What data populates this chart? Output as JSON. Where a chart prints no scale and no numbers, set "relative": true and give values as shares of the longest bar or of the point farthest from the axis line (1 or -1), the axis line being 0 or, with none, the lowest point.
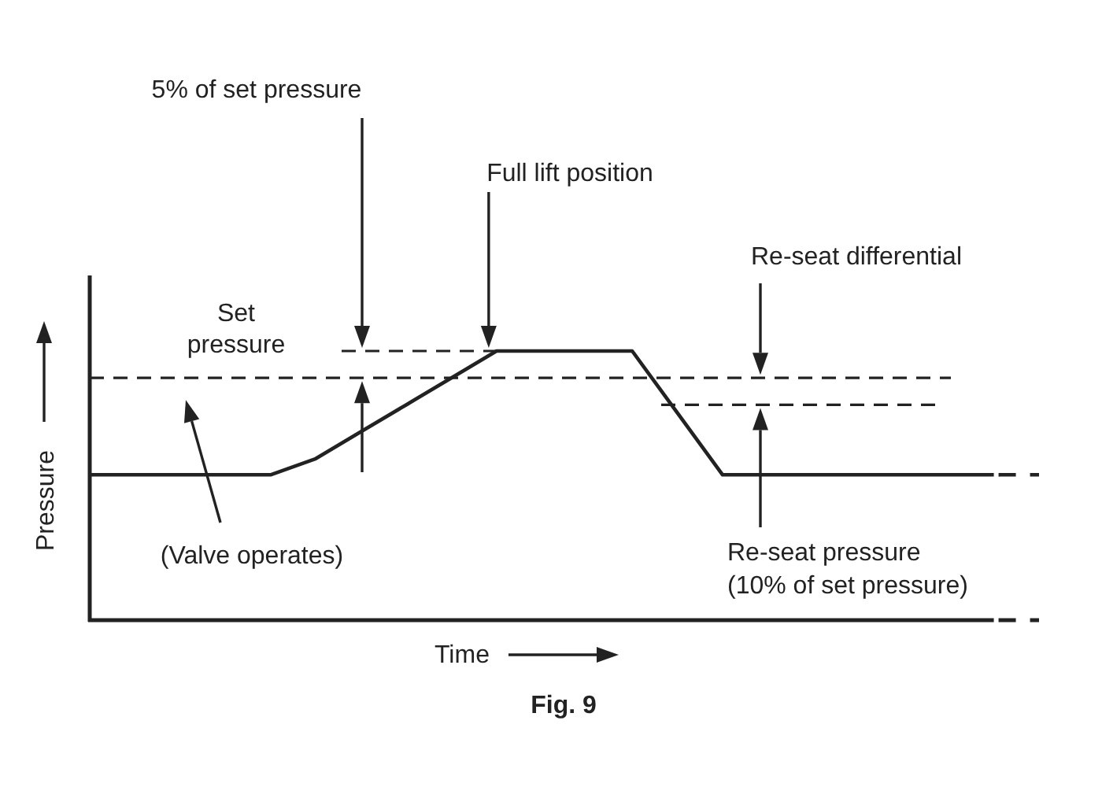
{
  "chart_data": {
    "type": "line",
    "xlabel": "Time",
    "ylabel": "Pressure",
    "relative": true,
    "line_style": "solid",
    "categories": [
      null,
      null,
      null,
      null,
      null,
      null,
      null,
      null,
      null,
      null,
      null,
      null,
      null,
      null,
      null,
      null,
      null,
      null,
      null,
      null,
      null,
      null
    ],
    "series": [
      {
        "color": "#222222",
        "values": [
          0.54,
          0.54,
          0.54,
          0.54,
          0.54,
          0.6,
          0.7,
          0.8,
          0.9,
          1,
          1,
          1,
          1,
          0.77,
          0.54,
          0.54,
          0.54,
          0.54,
          0.54,
          0.54,
          0.54,
          null
        ]
      },
      {
        "color": "#222222",
        "line_style": "dashed",
        "values": [
          null,
          null,
          null,
          null,
          null,
          null,
          null,
          null,
          null,
          null,
          null,
          null,
          null,
          null,
          null,
          null,
          null,
          null,
          null,
          null,
          0.54,
          0.54
        ]
      }
    ],
    "ref_lines": [
      {
        "axis": "y",
        "value": 0.9,
        "label": "Set pressure",
        "line_style": "dashed",
        "color": "#222222"
      },
      {
        "axis": "y",
        "value": 1,
        "line_style": "dashed",
        "color": "#222222"
      },
      {
        "axis": "y",
        "value": 0.8,
        "line_style": "dashed",
        "color": "#222222"
      }
    ],
    "annotations": [
      "5% of set pressure",
      "Full lift position",
      "Re-seat differential",
      "(Valve operates)",
      "Re-seat pressure (10% of set pressure)",
      "Fig. 9"
    ]
  }
}
